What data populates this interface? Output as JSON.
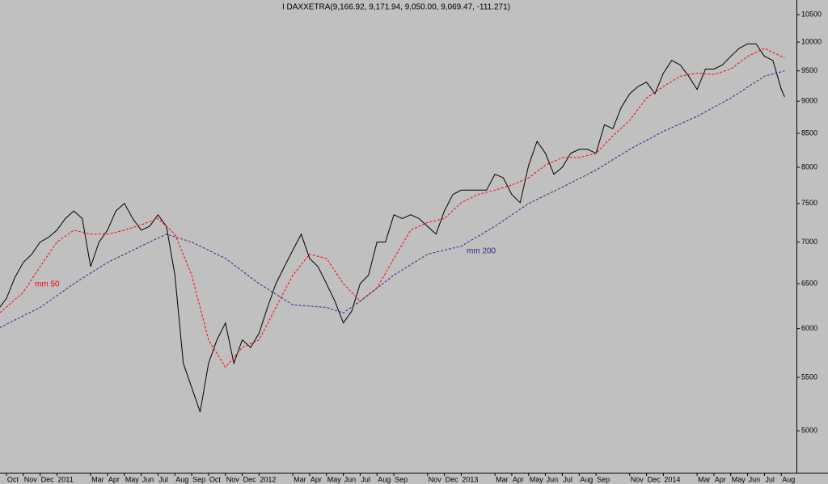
{
  "chart_data": {
    "type": "line",
    "title": "I DAXXETRA(9,166.92, 9,171.94, 9,050.00, 9,069.47, -111.271)",
    "log_y": true,
    "ylim": [
      4640,
      10780
    ],
    "yticks": [
      5000,
      5500,
      6000,
      6500,
      7000,
      7500,
      8000,
      8500,
      9000,
      9500,
      10000,
      10500
    ],
    "xlim": [
      -0.38,
      46.9
    ],
    "xticks": [
      {
        "value": 0,
        "label": "Oct"
      },
      {
        "value": 1,
        "label": "Nov"
      },
      {
        "value": 2,
        "label": "Dec"
      },
      {
        "value": 3,
        "label": "2011"
      },
      {
        "value": 5,
        "label": "Mar"
      },
      {
        "value": 6,
        "label": "Apr"
      },
      {
        "value": 7,
        "label": "May"
      },
      {
        "value": 8,
        "label": "Jun"
      },
      {
        "value": 9,
        "label": "Jul"
      },
      {
        "value": 10,
        "label": "Aug"
      },
      {
        "value": 11,
        "label": "Sep"
      },
      {
        "value": 12,
        "label": "Oct"
      },
      {
        "value": 13,
        "label": "Nov"
      },
      {
        "value": 14,
        "label": "Dec"
      },
      {
        "value": 15,
        "label": "2012"
      },
      {
        "value": 17,
        "label": "Mar"
      },
      {
        "value": 18,
        "label": "Apr"
      },
      {
        "value": 19,
        "label": "May"
      },
      {
        "value": 20,
        "label": "Jun"
      },
      {
        "value": 21,
        "label": "Jul"
      },
      {
        "value": 22,
        "label": "Aug"
      },
      {
        "value": 23,
        "label": "Sep"
      },
      {
        "value": 25,
        "label": "Nov"
      },
      {
        "value": 26,
        "label": "Dec"
      },
      {
        "value": 27,
        "label": "2013"
      },
      {
        "value": 29,
        "label": "Mar"
      },
      {
        "value": 30,
        "label": "Apr"
      },
      {
        "value": 31,
        "label": "May"
      },
      {
        "value": 32,
        "label": "Jun"
      },
      {
        "value": 33,
        "label": "Jul"
      },
      {
        "value": 34,
        "label": "Aug"
      },
      {
        "value": 35,
        "label": "Sep"
      },
      {
        "value": 37,
        "label": "Nov"
      },
      {
        "value": 38,
        "label": "Dec"
      },
      {
        "value": 39,
        "label": "2014"
      },
      {
        "value": 41,
        "label": "Mar"
      },
      {
        "value": 42,
        "label": "Apr"
      },
      {
        "value": 43,
        "label": "May"
      },
      {
        "value": 44,
        "label": "Jun"
      },
      {
        "value": 45,
        "label": "Jul"
      },
      {
        "value": 46,
        "label": "Aug"
      }
    ],
    "annotations": [
      "mm 50",
      "mm 200"
    ],
    "series": [
      {
        "name": "I DAXXETRA",
        "color": "#000000",
        "dash": false,
        "x": [
          -0.4,
          0,
          0.5,
          1,
          1.5,
          2,
          2.5,
          3,
          3.5,
          4,
          4.5,
          5,
          5.5,
          6,
          6.5,
          7,
          7.5,
          8,
          8.5,
          9,
          9.5,
          10,
          10.5,
          11,
          11.5,
          12,
          12.5,
          13,
          13.5,
          14,
          14.5,
          15,
          15.5,
          16,
          16.5,
          17,
          17.5,
          18,
          18.5,
          19,
          19.5,
          20,
          20.5,
          21,
          21.5,
          22,
          22.5,
          23,
          23.5,
          24,
          24.5,
          25,
          25.5,
          26,
          26.5,
          27,
          27.5,
          28,
          28.5,
          29,
          29.5,
          30,
          30.5,
          31,
          31.5,
          32,
          32.5,
          33,
          33.5,
          34,
          34.5,
          35,
          35.5,
          36,
          36.5,
          37,
          37.5,
          38,
          38.5,
          39,
          39.5,
          40,
          40.5,
          41,
          41.5,
          42,
          42.5,
          43,
          43.5,
          44,
          44.5,
          45,
          45.5,
          46,
          46.2
        ],
        "values": [
          6230,
          6330,
          6570,
          6750,
          6850,
          7000,
          7060,
          7150,
          7300,
          7400,
          7300,
          6700,
          7000,
          7150,
          7400,
          7500,
          7300,
          7150,
          7200,
          7350,
          7200,
          6600,
          5640,
          5400,
          5170,
          5640,
          5880,
          6060,
          5640,
          5880,
          5800,
          5950,
          6230,
          6500,
          6700,
          6900,
          7100,
          6800,
          6700,
          6500,
          6300,
          6060,
          6190,
          6500,
          6600,
          7000,
          7000,
          7350,
          7300,
          7350,
          7300,
          7200,
          7100,
          7400,
          7620,
          7680,
          7680,
          7680,
          7680,
          7900,
          7850,
          7620,
          7510,
          8030,
          8380,
          8200,
          7900,
          8000,
          8200,
          8260,
          8260,
          8200,
          8630,
          8570,
          8900,
          9120,
          9240,
          9310,
          9120,
          9460,
          9680,
          9600,
          9410,
          9190,
          9530,
          9530,
          9600,
          9750,
          9890,
          9970,
          9970,
          9750,
          9680,
          9190,
          9069
        ]
      },
      {
        "name": "mm 50",
        "color": "#ff0000",
        "dash": true,
        "x": [
          -0.4,
          1,
          2,
          3,
          4,
          5,
          6,
          7,
          8,
          9,
          10,
          11,
          12,
          13,
          14,
          15,
          16,
          17,
          18,
          19,
          20,
          21,
          22,
          23,
          24,
          25,
          26,
          27,
          28,
          29,
          30,
          31,
          32,
          33,
          34,
          35,
          36,
          37,
          38,
          39,
          40,
          41,
          42,
          43,
          44,
          45,
          46,
          46.2
        ],
        "values": [
          6170,
          6400,
          6700,
          7000,
          7150,
          7100,
          7100,
          7150,
          7220,
          7300,
          7100,
          6600,
          5880,
          5600,
          5800,
          5880,
          6230,
          6600,
          6850,
          6800,
          6500,
          6300,
          6450,
          6800,
          7150,
          7250,
          7300,
          7510,
          7620,
          7680,
          7750,
          7850,
          8030,
          8140,
          8140,
          8200,
          8460,
          8700,
          9050,
          9240,
          9410,
          9460,
          9440,
          9530,
          9750,
          9890,
          9750,
          9720
        ]
      },
      {
        "name": "mm 200",
        "color": "#3a1f8a",
        "dash": true,
        "x": [
          -0.4,
          2,
          4,
          6,
          8,
          9.5,
          11,
          13,
          15,
          17,
          19,
          20,
          21,
          23,
          25,
          27,
          29,
          31,
          33,
          35,
          37,
          39,
          41,
          43,
          45,
          46.2
        ],
        "values": [
          6010,
          6230,
          6500,
          6750,
          6950,
          7100,
          7000,
          6800,
          6500,
          6260,
          6230,
          6170,
          6300,
          6600,
          6850,
          6950,
          7200,
          7500,
          7720,
          7960,
          8260,
          8530,
          8760,
          9050,
          9410,
          9500
        ]
      }
    ]
  }
}
